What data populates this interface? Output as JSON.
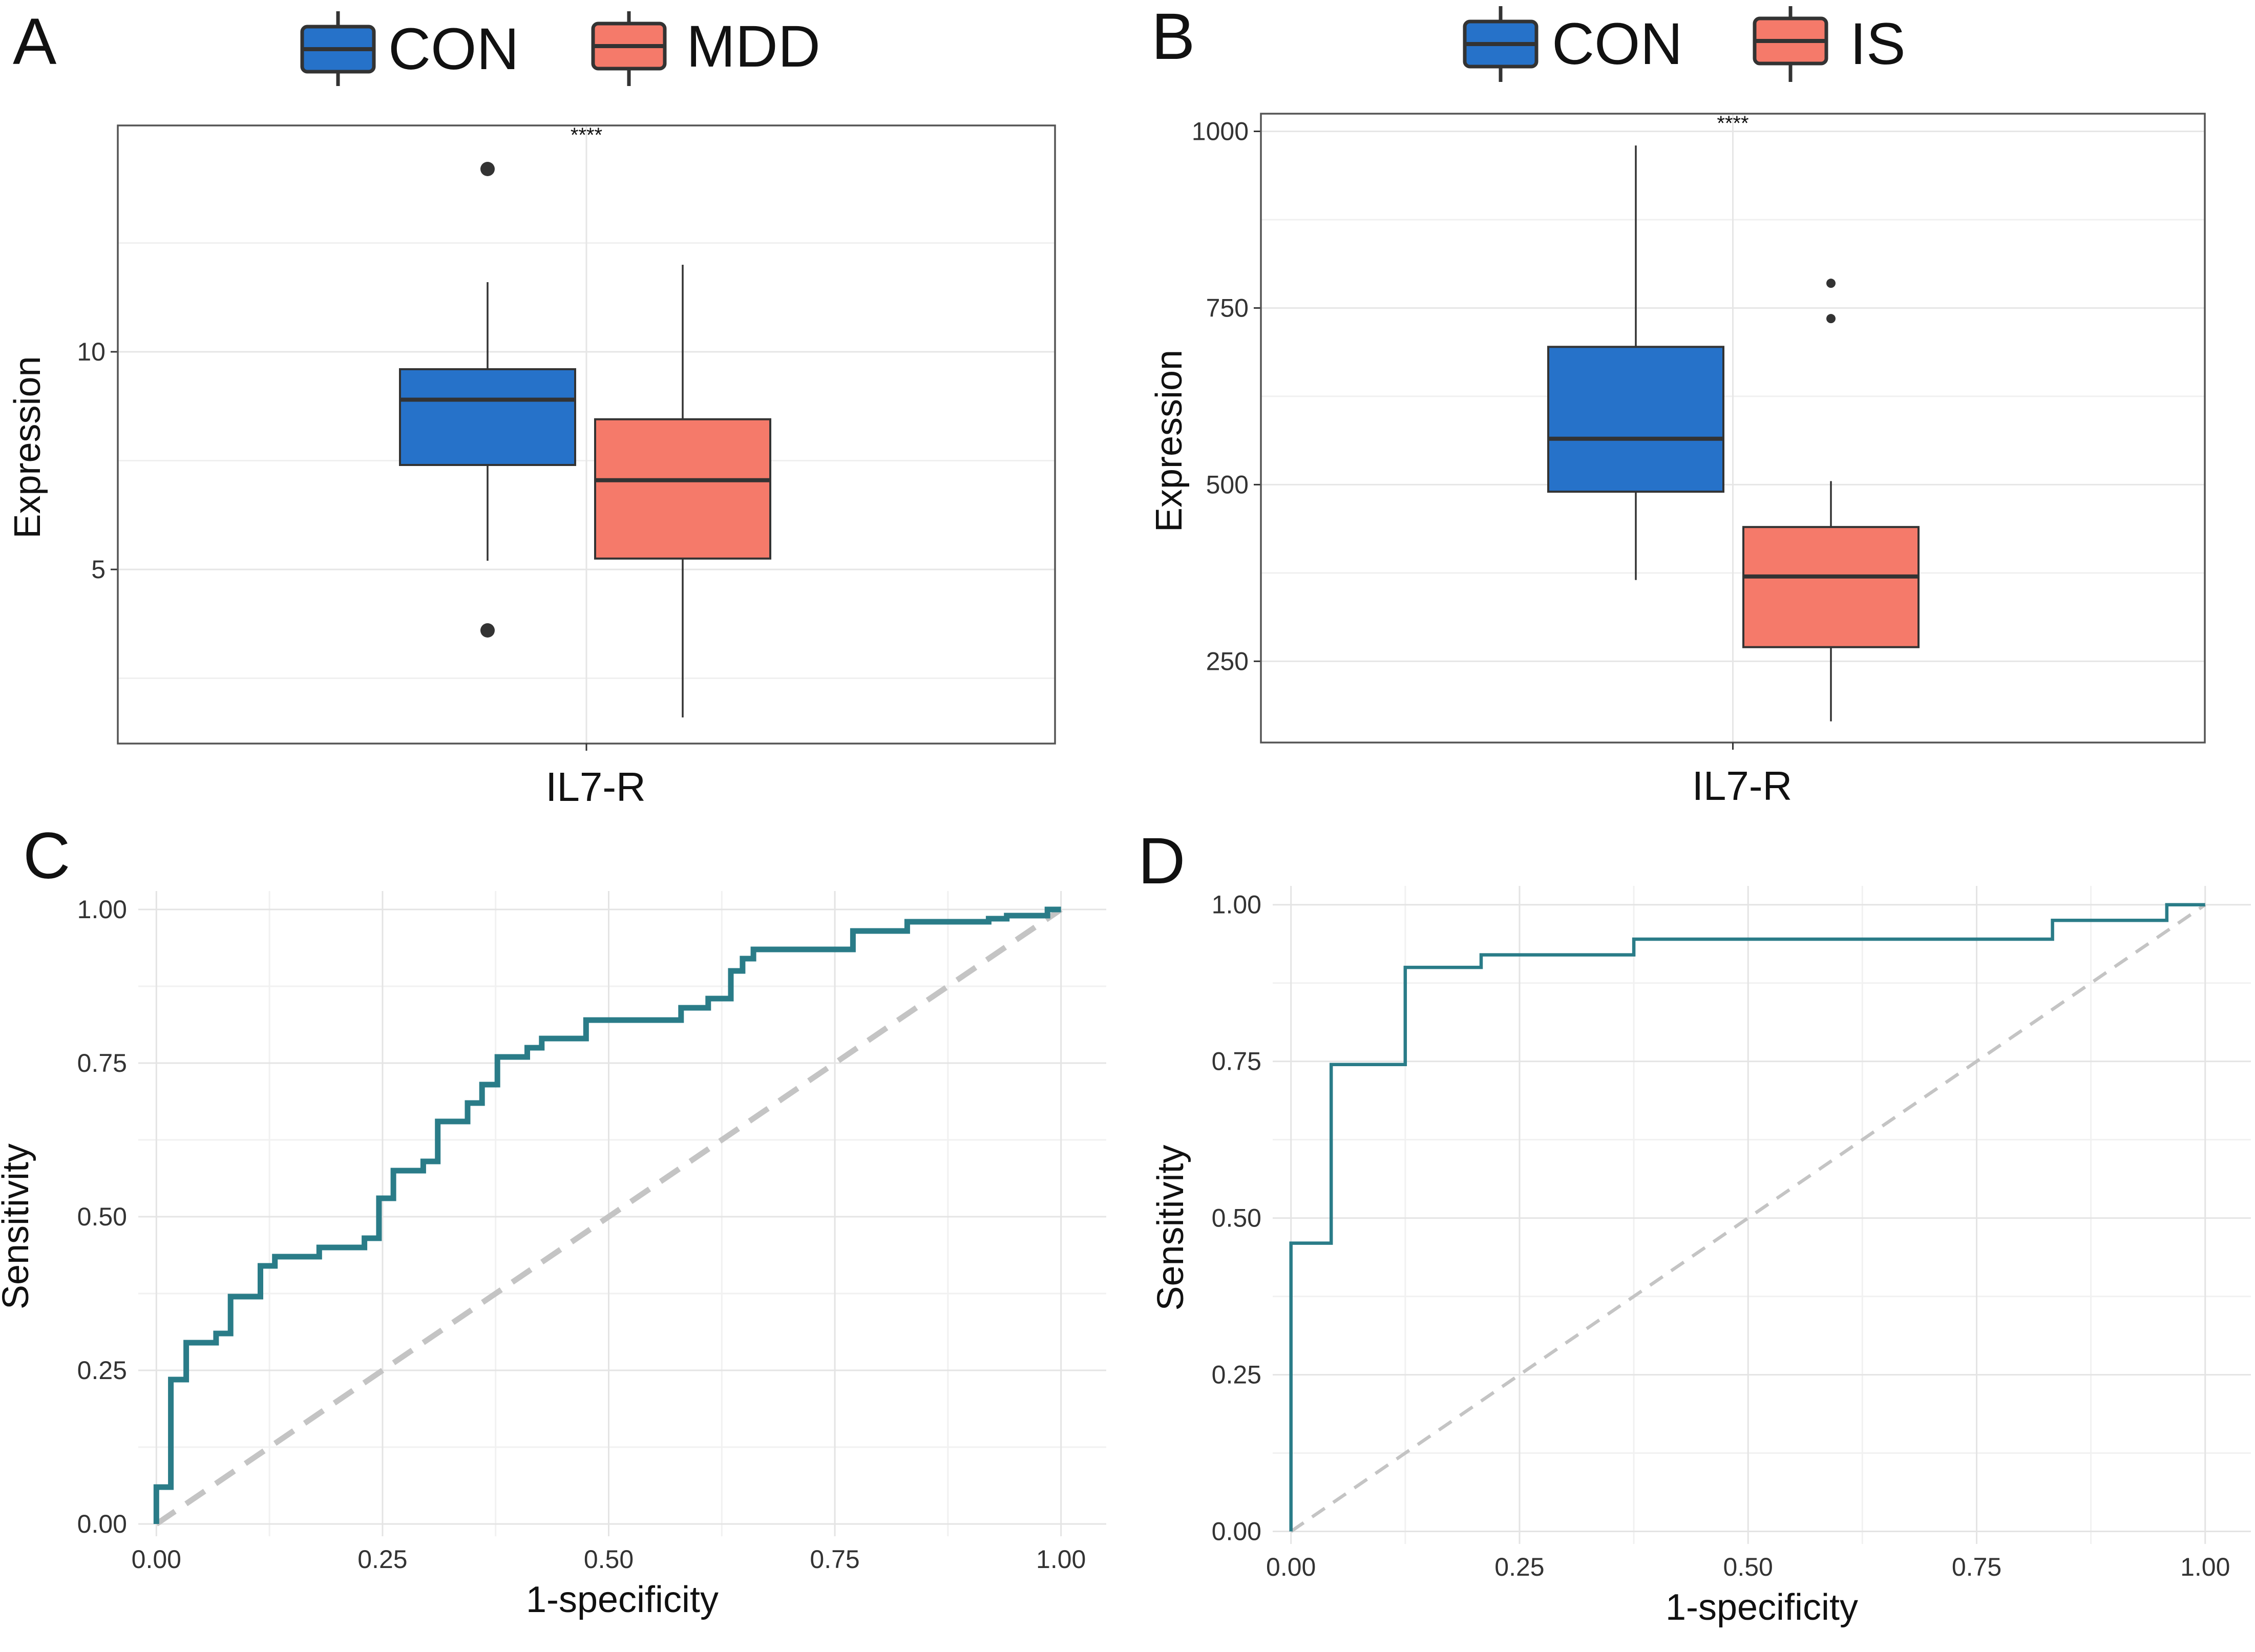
{
  "panels": {
    "A": {
      "letter": "A",
      "legend": [
        {
          "label": "CON",
          "color": "#2672c9"
        },
        {
          "label": "MDD",
          "color": "#f57a6a"
        }
      ]
    },
    "B": {
      "letter": "B",
      "legend": [
        {
          "label": "CON",
          "color": "#2672c9"
        },
        {
          "label": "IS",
          "color": "#f57a6a"
        }
      ]
    },
    "C": {
      "letter": "C"
    },
    "D": {
      "letter": "D"
    }
  },
  "chart_data": [
    {
      "panel": "A",
      "type": "box",
      "category": "IL7-R",
      "ylabel": "Expression",
      "ylim": [
        1.0,
        15.2
      ],
      "yticks": [
        5,
        10
      ],
      "significance": "****",
      "boxes": [
        {
          "group": "CON",
          "color": "#2672c9",
          "whisker_low": 5.2,
          "q1": 7.4,
          "median": 8.9,
          "q3": 9.6,
          "whisker_high": 11.6,
          "outliers": [
            14.2,
            3.6
          ]
        },
        {
          "group": "MDD",
          "color": "#f57a6a",
          "whisker_low": 1.6,
          "q1": 5.25,
          "median": 7.05,
          "q3": 8.45,
          "whisker_high": 12.0,
          "outliers": []
        }
      ]
    },
    {
      "panel": "B",
      "type": "box",
      "category": "IL7-R",
      "ylabel": "Expression",
      "ylim": [
        135,
        1025
      ],
      "yticks": [
        250,
        500,
        750,
        1000
      ],
      "significance": "****",
      "boxes": [
        {
          "group": "CON",
          "color": "#2672c9",
          "whisker_low": 365,
          "q1": 490,
          "median": 565,
          "q3": 695,
          "whisker_high": 980,
          "outliers": []
        },
        {
          "group": "IS",
          "color": "#f57a6a",
          "whisker_low": 165,
          "q1": 270,
          "median": 370,
          "q3": 440,
          "whisker_high": 505,
          "outliers": [
            785,
            735
          ]
        }
      ]
    },
    {
      "panel": "C",
      "type": "line",
      "xlabel": "1-specificity",
      "ylabel": "Sensitivity",
      "xlim": [
        -0.02,
        1.05
      ],
      "ylim": [
        -0.02,
        1.03
      ],
      "ticks": [
        0,
        0.25,
        0.5,
        0.75,
        1.0
      ],
      "tick_labels": [
        "0.00",
        "0.25",
        "0.50",
        "0.75",
        "1.00"
      ],
      "series": [
        {
          "name": "ROC",
          "color": "#2a7c88",
          "x": [
            0,
            0,
            0.016,
            0.016,
            0.033,
            0.033,
            0.066,
            0.066,
            0.082,
            0.082,
            0.115,
            0.115,
            0.131,
            0.131,
            0.18,
            0.18,
            0.23,
            0.23,
            0.246,
            0.246,
            0.262,
            0.262,
            0.295,
            0.295,
            0.311,
            0.311,
            0.344,
            0.344,
            0.36,
            0.36,
            0.377,
            0.377,
            0.41,
            0.41,
            0.426,
            0.426,
            0.475,
            0.475,
            0.58,
            0.58,
            0.61,
            0.61,
            0.635,
            0.635,
            0.648,
            0.648,
            0.66,
            0.66,
            0.77,
            0.77,
            0.83,
            0.83,
            0.92,
            0.92,
            0.94,
            0.94,
            0.985,
            0.985,
            1.0
          ],
          "y": [
            0,
            0.06,
            0.06,
            0.235,
            0.235,
            0.295,
            0.295,
            0.31,
            0.31,
            0.37,
            0.37,
            0.42,
            0.42,
            0.435,
            0.435,
            0.45,
            0.45,
            0.465,
            0.465,
            0.53,
            0.53,
            0.575,
            0.575,
            0.59,
            0.59,
            0.655,
            0.655,
            0.685,
            0.685,
            0.715,
            0.715,
            0.76,
            0.76,
            0.775,
            0.775,
            0.79,
            0.79,
            0.82,
            0.82,
            0.84,
            0.84,
            0.855,
            0.855,
            0.9,
            0.9,
            0.92,
            0.92,
            0.935,
            0.935,
            0.965,
            0.965,
            0.98,
            0.98,
            0.985,
            0.985,
            0.99,
            0.99,
            1.0,
            1.0
          ]
        },
        {
          "name": "reference",
          "color": "#c4c4c4",
          "x": [
            0,
            1
          ],
          "y": [
            0,
            1
          ]
        }
      ]
    },
    {
      "panel": "D",
      "type": "line",
      "xlabel": "1-specificity",
      "ylabel": "Sensitivity",
      "xlim": [
        -0.02,
        1.05
      ],
      "ylim": [
        -0.02,
        1.03
      ],
      "ticks": [
        0,
        0.25,
        0.5,
        0.75,
        1.0
      ],
      "tick_labels": [
        "0.00",
        "0.25",
        "0.50",
        "0.75",
        "1.00"
      ],
      "series": [
        {
          "name": "ROC",
          "color": "#2a7c88",
          "x": [
            0,
            0,
            0.044,
            0.044,
            0.125,
            0.125,
            0.208,
            0.208,
            0.375,
            0.375,
            0.833,
            0.833,
            0.958,
            0.958,
            1.0
          ],
          "y": [
            0,
            0.46,
            0.46,
            0.745,
            0.745,
            0.9,
            0.9,
            0.92,
            0.92,
            0.945,
            0.945,
            0.975,
            0.975,
            1.0,
            1.0
          ]
        },
        {
          "name": "reference",
          "color": "#c4c4c4",
          "x": [
            0,
            1
          ],
          "y": [
            0,
            1
          ]
        }
      ]
    }
  ]
}
